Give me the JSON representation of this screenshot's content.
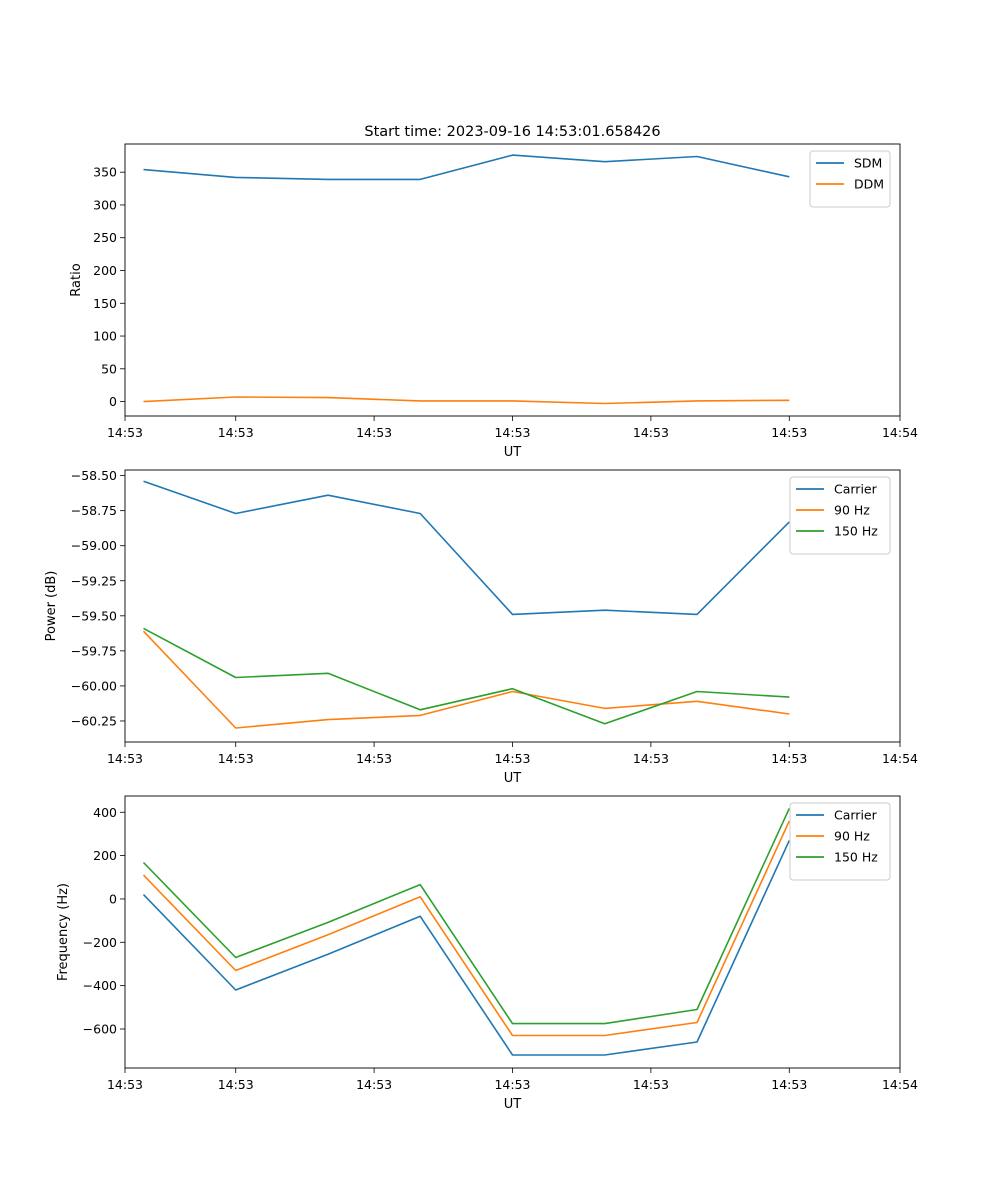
{
  "figure_title": "Start time: 2023-09-16 14:53:01.658426",
  "chart_data": [
    {
      "type": "line",
      "title": "Start time: 2023-09-16 14:53:01.658426",
      "xlabel": "UT",
      "ylabel": "Ratio",
      "x": [
        1,
        2,
        3,
        4,
        5,
        6,
        7,
        8
      ],
      "xlim": [
        0.8,
        9.2
      ],
      "xticks": [
        0.8,
        2.0,
        3.5,
        5.0,
        6.5,
        8.0,
        9.2
      ],
      "xtick_labels": [
        "14:53",
        "14:53",
        "14:53",
        "14:53",
        "14:53",
        "14:53",
        "14:54"
      ],
      "ylim": [
        -22,
        393
      ],
      "yticks": [
        0,
        50,
        100,
        150,
        200,
        250,
        300,
        350
      ],
      "ytick_labels": [
        "0",
        "50",
        "100",
        "150",
        "200",
        "250",
        "300",
        "350"
      ],
      "legend_position": "top-right",
      "series": [
        {
          "name": "SDM",
          "color": "#1f77b4",
          "values": [
            354,
            342,
            339,
            339,
            376,
            366,
            374,
            343
          ]
        },
        {
          "name": "DDM",
          "color": "#ff7f0e",
          "values": [
            0,
            7,
            6,
            1,
            1,
            -3,
            1,
            2
          ]
        }
      ]
    },
    {
      "type": "line",
      "title": "",
      "xlabel": "UT",
      "ylabel": "Power (dB)",
      "x": [
        1,
        2,
        3,
        4,
        5,
        6,
        7,
        8
      ],
      "xlim": [
        0.8,
        9.2
      ],
      "xticks": [
        0.8,
        2.0,
        3.5,
        5.0,
        6.5,
        8.0,
        9.2
      ],
      "xtick_labels": [
        "14:53",
        "14:53",
        "14:53",
        "14:53",
        "14:53",
        "14:53",
        "14:54"
      ],
      "ylim": [
        -60.4,
        -58.46
      ],
      "yticks": [
        -58.5,
        -58.75,
        -59.0,
        -59.25,
        -59.5,
        -59.75,
        -60.0,
        -60.25
      ],
      "ytick_labels": [
        "−58.50",
        "−58.75",
        "−59.00",
        "−59.25",
        "−59.50",
        "−59.75",
        "−60.00",
        "−60.25"
      ],
      "legend_position": "top-right",
      "series": [
        {
          "name": "Carrier",
          "color": "#1f77b4",
          "values": [
            -58.54,
            -58.77,
            -58.64,
            -58.77,
            -59.49,
            -59.46,
            -59.49,
            -58.83
          ]
        },
        {
          "name": "90 Hz",
          "color": "#ff7f0e",
          "values": [
            -59.61,
            -60.3,
            -60.24,
            -60.21,
            -60.04,
            -60.16,
            -60.11,
            -60.2
          ]
        },
        {
          "name": "150 Hz",
          "color": "#2ca02c",
          "values": [
            -59.59,
            -59.94,
            -59.91,
            -60.17,
            -60.02,
            -60.27,
            -60.04,
            -60.08
          ]
        }
      ]
    },
    {
      "type": "line",
      "title": "",
      "xlabel": "UT",
      "ylabel": "Frequency (Hz)",
      "x": [
        1,
        2,
        3,
        4,
        5,
        6,
        7,
        8
      ],
      "xlim": [
        0.8,
        9.2
      ],
      "xticks": [
        0.8,
        2.0,
        3.5,
        5.0,
        6.5,
        8.0,
        9.2
      ],
      "xtick_labels": [
        "14:53",
        "14:53",
        "14:53",
        "14:53",
        "14:53",
        "14:53",
        "14:54"
      ],
      "ylim": [
        -780,
        475
      ],
      "yticks": [
        -600,
        -400,
        -200,
        0,
        200,
        400
      ],
      "ytick_labels": [
        "−600",
        "−400",
        "−200",
        "0",
        "200",
        "400"
      ],
      "legend_position": "top-right",
      "series": [
        {
          "name": "Carrier",
          "color": "#1f77b4",
          "values": [
            20,
            -420,
            -255,
            -80,
            -720,
            -720,
            -660,
            270
          ]
        },
        {
          "name": "90 Hz",
          "color": "#ff7f0e",
          "values": [
            110,
            -330,
            -165,
            10,
            -630,
            -630,
            -570,
            360
          ]
        },
        {
          "name": "150 Hz",
          "color": "#2ca02c",
          "values": [
            168,
            -270,
            -108,
            66,
            -575,
            -575,
            -510,
            418
          ]
        }
      ]
    }
  ]
}
